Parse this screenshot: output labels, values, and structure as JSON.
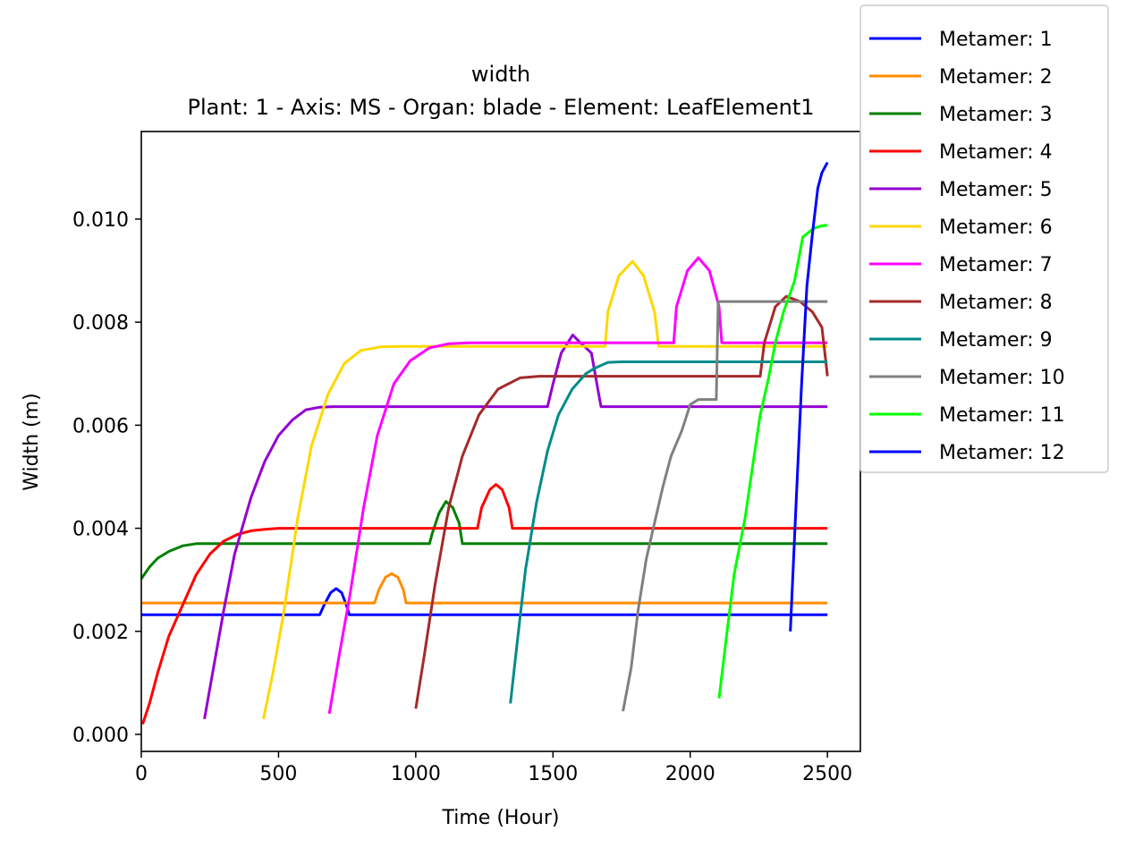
{
  "chart_data": {
    "type": "line",
    "title": "width",
    "subtitle": "Plant: 1 - Axis: MS - Organ: blade - Element: LeafElement1",
    "xlabel": "Time (Hour)",
    "ylabel": "Width (m)",
    "xlim": [
      0,
      2620
    ],
    "ylim": [
      -0.00033,
      0.0117
    ],
    "xticks": [
      0,
      500,
      1000,
      1500,
      2000,
      2500
    ],
    "xtick_labels": [
      "0",
      "500",
      "1000",
      "1500",
      "2000",
      "2500"
    ],
    "yticks": [
      0.0,
      0.002,
      0.004,
      0.006,
      0.008,
      0.01
    ],
    "ytick_labels": [
      "0.000",
      "0.002",
      "0.004",
      "0.006",
      "0.008",
      "0.010"
    ],
    "grid": false,
    "legend_position": "upper right, outside plot",
    "series": [
      {
        "name": "Metamer: 1",
        "color": "#0000ff",
        "points": [
          [
            0,
            0.00232
          ],
          [
            650,
            0.00232
          ],
          [
            665,
            0.0025
          ],
          [
            690,
            0.00275
          ],
          [
            710,
            0.00283
          ],
          [
            730,
            0.00275
          ],
          [
            748,
            0.0025
          ],
          [
            758,
            0.00232
          ],
          [
            2500,
            0.00232
          ]
        ]
      },
      {
        "name": "Metamer: 2",
        "color": "#ff8c00",
        "points": [
          [
            0,
            0.00255
          ],
          [
            850,
            0.00255
          ],
          [
            865,
            0.0028
          ],
          [
            890,
            0.00305
          ],
          [
            912,
            0.00312
          ],
          [
            935,
            0.00305
          ],
          [
            955,
            0.0028
          ],
          [
            965,
            0.00255
          ],
          [
            2500,
            0.00255
          ]
        ]
      },
      {
        "name": "Metamer: 3",
        "color": "#008000",
        "points": [
          [
            0,
            0.00302
          ],
          [
            30,
            0.00325
          ],
          [
            60,
            0.00342
          ],
          [
            100,
            0.00355
          ],
          [
            150,
            0.00366
          ],
          [
            200,
            0.0037
          ],
          [
            300,
            0.0037
          ],
          [
            1050,
            0.0037
          ],
          [
            1060,
            0.0039
          ],
          [
            1085,
            0.0043
          ],
          [
            1110,
            0.00452
          ],
          [
            1135,
            0.0044
          ],
          [
            1158,
            0.0041
          ],
          [
            1170,
            0.0037
          ],
          [
            2500,
            0.0037
          ]
        ]
      },
      {
        "name": "Metamer: 4",
        "color": "#ff0000",
        "points": [
          [
            5,
            0.0002
          ],
          [
            30,
            0.0006
          ],
          [
            60,
            0.0012
          ],
          [
            100,
            0.0019
          ],
          [
            150,
            0.0025
          ],
          [
            200,
            0.0031
          ],
          [
            250,
            0.0035
          ],
          [
            300,
            0.00375
          ],
          [
            350,
            0.00388
          ],
          [
            400,
            0.00395
          ],
          [
            450,
            0.00398
          ],
          [
            500,
            0.004
          ],
          [
            1225,
            0.004
          ],
          [
            1240,
            0.0044
          ],
          [
            1270,
            0.00475
          ],
          [
            1292,
            0.00485
          ],
          [
            1315,
            0.00475
          ],
          [
            1340,
            0.0044
          ],
          [
            1352,
            0.004
          ],
          [
            2500,
            0.004
          ]
        ]
      },
      {
        "name": "Metamer: 5",
        "color": "#9400d3",
        "points": [
          [
            230,
            0.0003
          ],
          [
            260,
            0.0012
          ],
          [
            300,
            0.0024
          ],
          [
            340,
            0.0035
          ],
          [
            400,
            0.0046
          ],
          [
            450,
            0.0053
          ],
          [
            500,
            0.0058
          ],
          [
            550,
            0.0061
          ],
          [
            600,
            0.0063
          ],
          [
            650,
            0.00635
          ],
          [
            700,
            0.00636
          ],
          [
            1480,
            0.00636
          ],
          [
            1500,
            0.0068
          ],
          [
            1530,
            0.0074
          ],
          [
            1572,
            0.00775
          ],
          [
            1600,
            0.0076
          ],
          [
            1640,
            0.0074
          ],
          [
            1660,
            0.0068
          ],
          [
            1675,
            0.00636
          ],
          [
            2500,
            0.00636
          ]
        ]
      },
      {
        "name": "Metamer: 6",
        "color": "#ffd700",
        "points": [
          [
            445,
            0.0003
          ],
          [
            480,
            0.0012
          ],
          [
            520,
            0.0024
          ],
          [
            570,
            0.0042
          ],
          [
            620,
            0.0056
          ],
          [
            680,
            0.0066
          ],
          [
            740,
            0.0072
          ],
          [
            800,
            0.00745
          ],
          [
            870,
            0.00752
          ],
          [
            950,
            0.00753
          ],
          [
            1690,
            0.00753
          ],
          [
            1700,
            0.0082
          ],
          [
            1740,
            0.0089
          ],
          [
            1790,
            0.00918
          ],
          [
            1830,
            0.0089
          ],
          [
            1870,
            0.0082
          ],
          [
            1885,
            0.00753
          ],
          [
            2500,
            0.00753
          ]
        ]
      },
      {
        "name": "Metamer: 7",
        "color": "#ff00ff",
        "points": [
          [
            685,
            0.0004
          ],
          [
            720,
            0.0015
          ],
          [
            760,
            0.0027
          ],
          [
            810,
            0.0044
          ],
          [
            860,
            0.0058
          ],
          [
            920,
            0.0068
          ],
          [
            980,
            0.00725
          ],
          [
            1050,
            0.0075
          ],
          [
            1120,
            0.00758
          ],
          [
            1200,
            0.0076
          ],
          [
            1940,
            0.0076
          ],
          [
            1950,
            0.0083
          ],
          [
            1990,
            0.009
          ],
          [
            2030,
            0.00925
          ],
          [
            2070,
            0.009
          ],
          [
            2105,
            0.0083
          ],
          [
            2115,
            0.0076
          ],
          [
            2500,
            0.0076
          ]
        ]
      },
      {
        "name": "Metamer: 8",
        "color": "#a52a2a",
        "points": [
          [
            1000,
            0.0005
          ],
          [
            1030,
            0.0015
          ],
          [
            1070,
            0.0029
          ],
          [
            1120,
            0.0044
          ],
          [
            1170,
            0.0054
          ],
          [
            1230,
            0.0062
          ],
          [
            1300,
            0.0067
          ],
          [
            1380,
            0.00692
          ],
          [
            1450,
            0.00695
          ],
          [
            2255,
            0.00695
          ],
          [
            2270,
            0.0076
          ],
          [
            2310,
            0.0083
          ],
          [
            2350,
            0.0085
          ],
          [
            2400,
            0.0084
          ],
          [
            2445,
            0.0082
          ],
          [
            2480,
            0.0079
          ],
          [
            2495,
            0.0072
          ],
          [
            2500,
            0.00695
          ]
        ]
      },
      {
        "name": "Metamer: 9",
        "color": "#008b8b",
        "points": [
          [
            1345,
            0.0006
          ],
          [
            1370,
            0.0018
          ],
          [
            1400,
            0.0032
          ],
          [
            1440,
            0.0045
          ],
          [
            1480,
            0.0055
          ],
          [
            1520,
            0.0062
          ],
          [
            1570,
            0.0067
          ],
          [
            1620,
            0.007
          ],
          [
            1650,
            0.0071
          ],
          [
            1700,
            0.00722
          ],
          [
            1750,
            0.00723
          ],
          [
            2500,
            0.00723
          ]
        ]
      },
      {
        "name": "Metamer: 10",
        "color": "#808080",
        "points": [
          [
            1755,
            0.00045
          ],
          [
            1785,
            0.0013
          ],
          [
            1810,
            0.0024
          ],
          [
            1840,
            0.0034
          ],
          [
            1870,
            0.0041
          ],
          [
            1900,
            0.0048
          ],
          [
            1930,
            0.0054
          ],
          [
            1970,
            0.0059
          ],
          [
            2000,
            0.0064
          ],
          [
            2030,
            0.0065
          ],
          [
            2095,
            0.0065
          ],
          [
            2102,
            0.0084
          ],
          [
            2500,
            0.0084
          ]
        ]
      },
      {
        "name": "Metamer: 11",
        "color": "#00ff00",
        "points": [
          [
            2105,
            0.0007
          ],
          [
            2130,
            0.0018
          ],
          [
            2160,
            0.0031
          ],
          [
            2200,
            0.0042
          ],
          [
            2230,
            0.0053
          ],
          [
            2255,
            0.0062
          ],
          [
            2285,
            0.0069
          ],
          [
            2310,
            0.0076
          ],
          [
            2340,
            0.0082
          ],
          [
            2380,
            0.0088
          ],
          [
            2410,
            0.00965
          ],
          [
            2450,
            0.00982
          ],
          [
            2480,
            0.00987
          ],
          [
            2500,
            0.00988
          ]
        ]
      },
      {
        "name": "Metamer: 12",
        "color": "#0000ff",
        "points": [
          [
            2365,
            0.002
          ],
          [
            2385,
            0.0044
          ],
          [
            2405,
            0.0067
          ],
          [
            2425,
            0.0087
          ],
          [
            2445,
            0.0097
          ],
          [
            2465,
            0.0106
          ],
          [
            2480,
            0.0109
          ],
          [
            2500,
            0.0111
          ]
        ]
      }
    ]
  }
}
